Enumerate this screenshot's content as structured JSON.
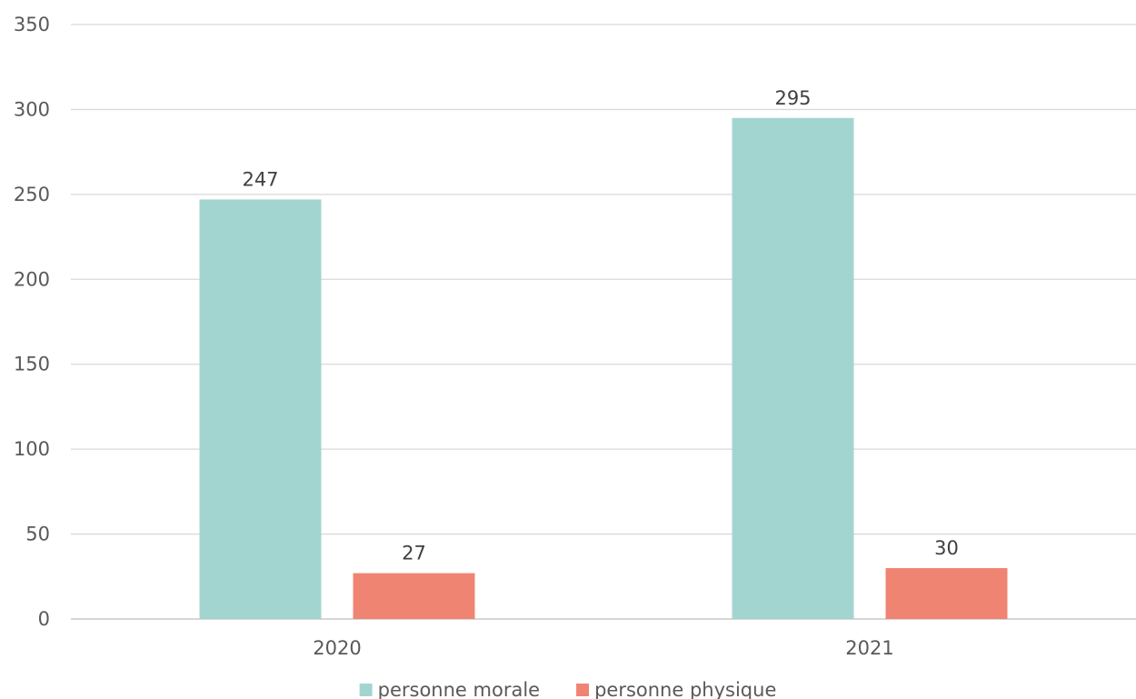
{
  "chart_data": {
    "type": "bar",
    "title": "",
    "xlabel": "",
    "ylabel": "",
    "categories": [
      "2020",
      "2021"
    ],
    "series": [
      {
        "name": "personne morale",
        "values": [
          247,
          295
        ],
        "color": "#a3d5d0"
      },
      {
        "name": "personne physique",
        "values": [
          27,
          30
        ],
        "color": "#f08473"
      }
    ],
    "ylim": [
      0,
      350
    ],
    "yticks": [
      0,
      50,
      100,
      150,
      200,
      250,
      300,
      350
    ],
    "grid": true,
    "data_labels": true,
    "legend": "bottom"
  }
}
